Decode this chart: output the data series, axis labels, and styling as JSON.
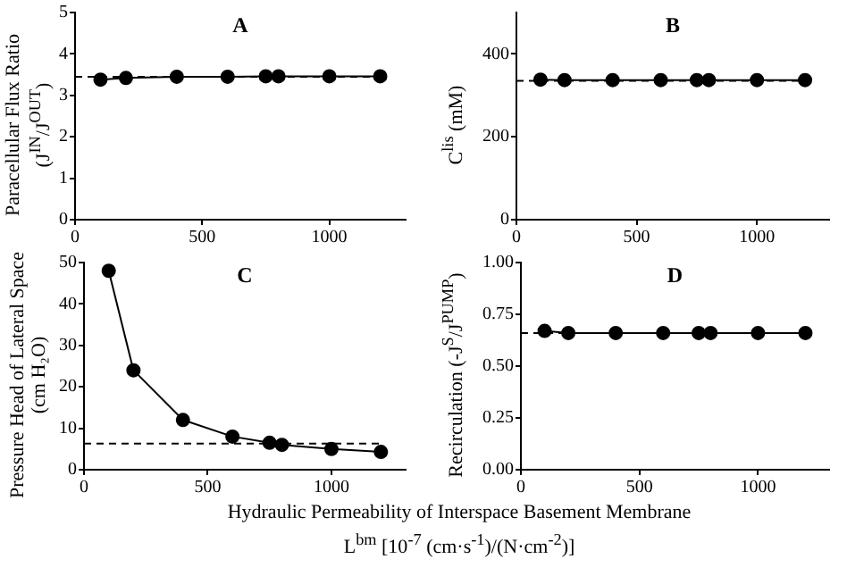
{
  "chart_data": [
    {
      "type": "line",
      "title": "A",
      "ylabel": "Paracellular Flux Ratio\n(J$^{IN}$/J$^{OUT}$)",
      "x": [
        100,
        200,
        400,
        600,
        750,
        800,
        1000,
        1200
      ],
      "series": [
        {
          "color": "#000000",
          "values": [
            3.38,
            3.42,
            3.45,
            3.45,
            3.46,
            3.46,
            3.46,
            3.46
          ]
        }
      ],
      "xlim": [
        0,
        1300
      ],
      "xticks": [
        0,
        500,
        1000
      ],
      "ylim": [
        0,
        5
      ],
      "yticks": [
        0,
        1,
        2,
        3,
        4,
        5
      ],
      "ref_lines": [
        {
          "axis": "y",
          "value": 3.45,
          "line_style": "dashed"
        }
      ],
      "marker": "circle",
      "line_style": "solid",
      "grid": false,
      "legend": false
    },
    {
      "type": "line",
      "title": "B",
      "ylabel": "C$^{lis}$ (mM)",
      "x": [
        100,
        200,
        400,
        600,
        750,
        800,
        1000,
        1200
      ],
      "series": [
        {
          "color": "#000000",
          "values": [
            338,
            337,
            337,
            337,
            337,
            337,
            337,
            337
          ]
        }
      ],
      "xlim": [
        0,
        1300
      ],
      "xticks": [
        0,
        500,
        1000
      ],
      "ylim": [
        0,
        500
      ],
      "yticks": [
        0,
        200,
        400
      ],
      "ref_lines": [
        {
          "axis": "y",
          "value": 335,
          "line_style": "dashed"
        }
      ],
      "marker": "circle",
      "line_style": "solid",
      "grid": false,
      "legend": false
    },
    {
      "type": "line",
      "title": "C",
      "ylabel": "Pressure Head of Lateral Space\n(cm H₂O)",
      "xlabel": "Hydraulic Permeability of Interspace Basement Membrane\nL$^{bm}$ [10$^{-7}$ (cm·s$^{-1}$)/(N·cm$^{-2}$)]",
      "x": [
        100,
        200,
        400,
        600,
        750,
        800,
        1000,
        1200
      ],
      "series": [
        {
          "color": "#000000",
          "values": [
            48,
            24,
            12,
            8,
            6.5,
            6,
            5,
            4.3
          ]
        }
      ],
      "xlim": [
        0,
        1300
      ],
      "xticks": [
        0,
        500,
        1000
      ],
      "ylim": [
        0,
        50
      ],
      "yticks": [
        0,
        10,
        20,
        30,
        40,
        50
      ],
      "ref_lines": [
        {
          "axis": "y",
          "value": 6.3,
          "line_style": "dashed"
        }
      ],
      "marker": "circle",
      "line_style": "solid",
      "grid": false,
      "legend": false
    },
    {
      "type": "line",
      "title": "D",
      "ylabel": "Recirculation (-J$^{S}$/J$^{PUMP}$)",
      "x": [
        100,
        200,
        400,
        600,
        750,
        800,
        1000,
        1200
      ],
      "series": [
        {
          "color": "#000000",
          "values": [
            0.67,
            0.66,
            0.66,
            0.66,
            0.66,
            0.66,
            0.66,
            0.66
          ]
        }
      ],
      "xlim": [
        0,
        1300
      ],
      "xticks": [
        0,
        500,
        1000
      ],
      "ylim": [
        0,
        1
      ],
      "yticks": [
        {
          "value": 0,
          "label": "0.00"
        },
        {
          "value": 0.25,
          "label": "0.25"
        },
        {
          "value": 0.5,
          "label": "0.50"
        },
        {
          "value": 0.75,
          "label": "0.75"
        },
        {
          "value": 1,
          "label": "1.00"
        }
      ],
      "ref_lines": [
        {
          "axis": "y",
          "value": 0.66,
          "line_style": "dashed"
        }
      ],
      "marker": "circle",
      "line_style": "solid",
      "grid": false,
      "legend": false
    }
  ]
}
